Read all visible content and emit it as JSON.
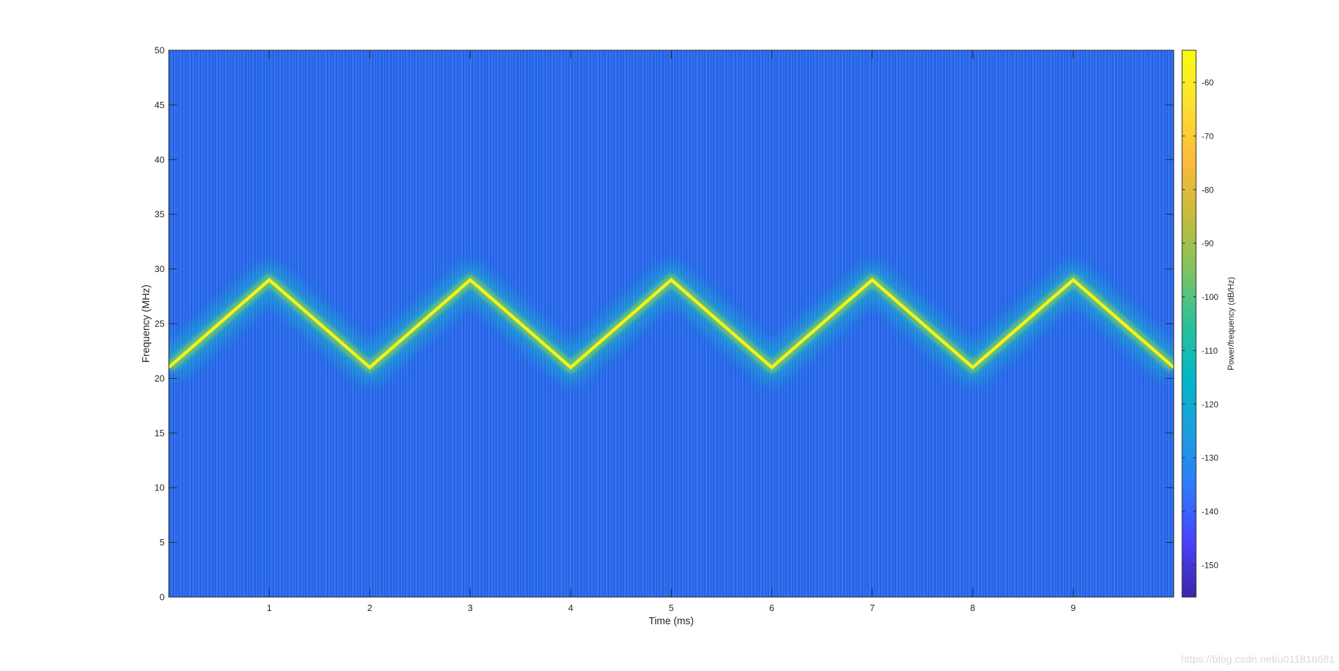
{
  "chart_data": {
    "type": "heatmap",
    "subtype": "spectrogram",
    "xlabel": "Time (ms)",
    "ylabel": "Frequency (MHz)",
    "xlim": [
      0,
      10
    ],
    "ylim": [
      0,
      50
    ],
    "x_ticks": [
      1,
      2,
      3,
      4,
      5,
      6,
      7,
      8,
      9
    ],
    "y_ticks": [
      0,
      5,
      10,
      15,
      20,
      25,
      30,
      35,
      40,
      45,
      50
    ],
    "grid": false,
    "series": [
      {
        "x": [
          0,
          1,
          2,
          3,
          4,
          5,
          6,
          7,
          8,
          9,
          10
        ],
        "y": [
          21,
          29,
          21,
          29,
          21,
          29,
          21,
          29,
          21,
          29,
          21
        ]
      }
    ],
    "colorbar": {
      "label": "Power/frequency (dB/Hz)",
      "ticks": [
        -60,
        -70,
        -80,
        -90,
        -100,
        -110,
        -120,
        -130,
        -140,
        -150
      ],
      "range": [
        -156,
        -54
      ],
      "colormap": "parula",
      "colors": [
        "#3e26a8",
        "#4743f8",
        "#2f79fc",
        "#1c9ede",
        "#03b6c8",
        "#2bc198",
        "#80c35f",
        "#c9bb3c",
        "#fdbb3a",
        "#fde031",
        "#f9fb0e"
      ]
    },
    "background_color": "#2f6ef2",
    "trace_color": "#f6f21a"
  },
  "watermark": "https://blog.csdn.net/u011816681"
}
